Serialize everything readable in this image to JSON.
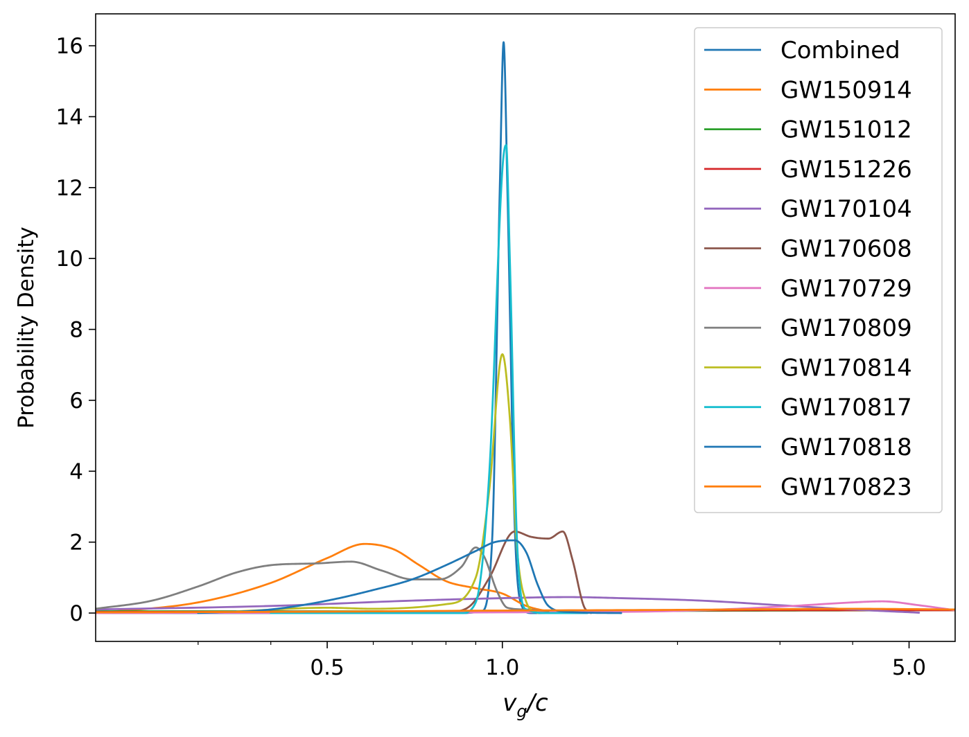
{
  "chart_data": {
    "type": "line",
    "title": "",
    "xlabel": "v_g/c",
    "ylabel": "Probability Density",
    "xscale": "log",
    "xlim": [
      0.2,
      6.0
    ],
    "ylim": [
      -0.8,
      16.9
    ],
    "grid": false,
    "legend_position": "top-right",
    "x_ticks": [
      {
        "value": 0.5,
        "label": "0.5"
      },
      {
        "value": 1.0,
        "label": "1.0"
      },
      {
        "value": 5.0,
        "label": "5.0"
      }
    ],
    "x_minor_ticks": [
      0.3,
      0.4,
      0.6,
      0.7,
      0.8,
      0.9,
      2,
      3,
      4
    ],
    "y_ticks": [
      {
        "value": 0,
        "label": "0"
      },
      {
        "value": 2,
        "label": "2"
      },
      {
        "value": 4,
        "label": "4"
      },
      {
        "value": 6,
        "label": "6"
      },
      {
        "value": 8,
        "label": "8"
      },
      {
        "value": 10,
        "label": "10"
      },
      {
        "value": 12,
        "label": "12"
      },
      {
        "value": 14,
        "label": "14"
      },
      {
        "value": 16,
        "label": "16"
      }
    ],
    "series": [
      {
        "name": "Combined",
        "color": "#1f77b4",
        "points": [
          [
            0.2,
            0.0
          ],
          [
            0.85,
            0.0
          ],
          [
            0.92,
            0.05
          ],
          [
            0.96,
            2.0
          ],
          [
            0.99,
            12.0
          ],
          [
            1.005,
            16.1
          ],
          [
            1.02,
            12.0
          ],
          [
            1.05,
            2.5
          ],
          [
            1.08,
            0.2
          ],
          [
            1.12,
            0.0
          ],
          [
            1.3,
            0.0
          ]
        ]
      },
      {
        "name": "GW150914",
        "color": "#ff7f0e",
        "points": [
          [
            0.2,
            0.0
          ],
          [
            0.3,
            0.3
          ],
          [
            0.4,
            0.85
          ],
          [
            0.5,
            1.55
          ],
          [
            0.58,
            1.95
          ],
          [
            0.65,
            1.8
          ],
          [
            0.72,
            1.35
          ],
          [
            0.8,
            0.9
          ],
          [
            0.9,
            0.7
          ],
          [
            1.0,
            0.55
          ],
          [
            1.1,
            0.2
          ],
          [
            1.2,
            0.05
          ],
          [
            1.3,
            0.0
          ]
        ]
      },
      {
        "name": "GW151012",
        "color": "#2ca02c",
        "points": [
          [
            0.2,
            0.05
          ],
          [
            1.0,
            0.05
          ],
          [
            3.0,
            0.07
          ],
          [
            6.0,
            0.08
          ]
        ]
      },
      {
        "name": "GW151226",
        "color": "#d62728",
        "points": [
          [
            0.2,
            0.03
          ],
          [
            1.0,
            0.05
          ],
          [
            3.0,
            0.08
          ],
          [
            6.0,
            0.08
          ]
        ]
      },
      {
        "name": "GW170104",
        "color": "#9467bd",
        "points": [
          [
            0.2,
            0.1
          ],
          [
            0.4,
            0.2
          ],
          [
            0.7,
            0.35
          ],
          [
            1.0,
            0.42
          ],
          [
            1.3,
            0.45
          ],
          [
            1.6,
            0.42
          ],
          [
            2.2,
            0.35
          ],
          [
            3.0,
            0.22
          ],
          [
            4.0,
            0.1
          ],
          [
            5.2,
            0.01
          ]
        ]
      },
      {
        "name": "GW170608",
        "color": "#8c564b",
        "points": [
          [
            0.8,
            0.0
          ],
          [
            0.88,
            0.2
          ],
          [
            0.95,
            1.0
          ],
          [
            1.05,
            2.3
          ],
          [
            1.12,
            2.15
          ],
          [
            1.2,
            2.1
          ],
          [
            1.27,
            2.3
          ],
          [
            1.32,
            1.5
          ],
          [
            1.38,
            0.2
          ],
          [
            1.42,
            0.0
          ]
        ]
      },
      {
        "name": "GW170729",
        "color": "#e377c2",
        "points": [
          [
            0.2,
            0.0
          ],
          [
            1.0,
            0.02
          ],
          [
            2.0,
            0.06
          ],
          [
            3.0,
            0.18
          ],
          [
            4.0,
            0.3
          ],
          [
            4.5,
            0.33
          ],
          [
            5.2,
            0.22
          ],
          [
            6.0,
            0.08
          ]
        ]
      },
      {
        "name": "GW170809",
        "color": "#7f7f7f",
        "points": [
          [
            0.2,
            0.12
          ],
          [
            0.25,
            0.35
          ],
          [
            0.3,
            0.75
          ],
          [
            0.35,
            1.15
          ],
          [
            0.4,
            1.35
          ],
          [
            0.48,
            1.4
          ],
          [
            0.55,
            1.45
          ],
          [
            0.62,
            1.2
          ],
          [
            0.7,
            0.95
          ],
          [
            0.78,
            0.95
          ],
          [
            0.85,
            1.3
          ],
          [
            0.9,
            1.85
          ],
          [
            0.93,
            1.6
          ],
          [
            0.98,
            0.6
          ],
          [
            1.02,
            0.15
          ],
          [
            1.1,
            0.1
          ],
          [
            1.2,
            0.05
          ]
        ]
      },
      {
        "name": "GW170814",
        "color": "#bcbd22",
        "points": [
          [
            0.35,
            0.05
          ],
          [
            0.5,
            0.15
          ],
          [
            0.6,
            0.12
          ],
          [
            0.8,
            0.25
          ],
          [
            0.9,
            1.0
          ],
          [
            0.95,
            3.5
          ],
          [
            1.0,
            7.3
          ],
          [
            1.03,
            5.5
          ],
          [
            1.06,
            1.8
          ],
          [
            1.1,
            0.3
          ],
          [
            1.15,
            0.0
          ]
        ]
      },
      {
        "name": "GW170817",
        "color": "#17becf",
        "points": [
          [
            0.4,
            0.0
          ],
          [
            0.85,
            0.0
          ],
          [
            0.9,
            0.3
          ],
          [
            0.95,
            4.0
          ],
          [
            1.0,
            12.5
          ],
          [
            1.015,
            13.2
          ],
          [
            1.03,
            10.0
          ],
          [
            1.06,
            2.0
          ],
          [
            1.1,
            0.1
          ],
          [
            1.2,
            0.0
          ],
          [
            1.4,
            0.0
          ]
        ]
      },
      {
        "name": "GW170818",
        "color": "#1f77b4",
        "points": [
          [
            0.3,
            0.0
          ],
          [
            0.4,
            0.1
          ],
          [
            0.5,
            0.35
          ],
          [
            0.6,
            0.65
          ],
          [
            0.7,
            0.95
          ],
          [
            0.8,
            1.35
          ],
          [
            0.9,
            1.75
          ],
          [
            0.97,
            2.0
          ],
          [
            1.05,
            2.05
          ],
          [
            1.1,
            1.7
          ],
          [
            1.15,
            0.8
          ],
          [
            1.2,
            0.2
          ],
          [
            1.3,
            0.03
          ],
          [
            1.6,
            0.0
          ]
        ]
      },
      {
        "name": "GW170823",
        "color": "#ff7f0e",
        "points": [
          [
            0.2,
            0.02
          ],
          [
            0.5,
            0.04
          ],
          [
            1.0,
            0.07
          ],
          [
            2.0,
            0.09
          ],
          [
            3.0,
            0.11
          ],
          [
            4.0,
            0.12
          ],
          [
            6.0,
            0.1
          ]
        ]
      }
    ]
  }
}
